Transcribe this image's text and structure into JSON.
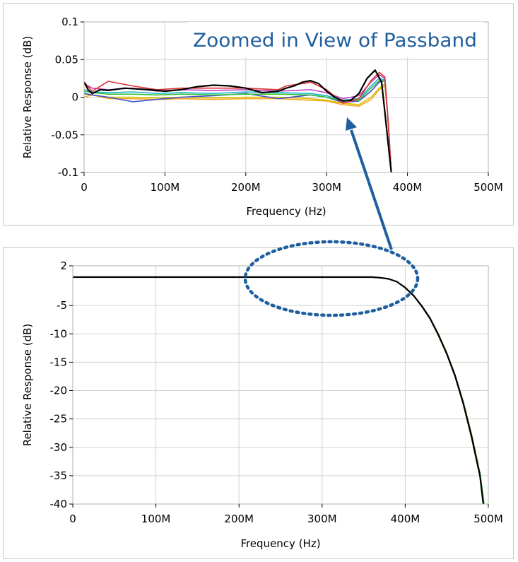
{
  "chart_data": [
    {
      "type": "line",
      "title": "",
      "annotation": "Zoomed in View of Passband",
      "xlabel": "Frequency (Hz)",
      "ylabel": "Relative Response (dB)",
      "xlim": [
        0,
        500000000
      ],
      "ylim": [
        -0.1,
        0.1
      ],
      "xticks": [
        0,
        100000000,
        200000000,
        300000000,
        400000000,
        500000000
      ],
      "xtick_labels": [
        "0",
        "100M",
        "200M",
        "300M",
        "400M",
        "500M"
      ],
      "yticks": [
        0.1,
        0.05,
        0,
        -0.05,
        -0.1
      ],
      "ytick_labels": [
        "0.1",
        "0.05",
        "0",
        "-0.05",
        "-0.1"
      ],
      "grid": true,
      "series": [
        {
          "name": "orange",
          "color": "#f5a623",
          "x": [
            0,
            10,
            30,
            60,
            90,
            120,
            160,
            200,
            240,
            280,
            300,
            320,
            340,
            355,
            365,
            372,
            376,
            380
          ],
          "y": [
            0.0,
            0.003,
            -0.002,
            -0.002,
            -0.003,
            -0.002,
            -0.003,
            -0.002,
            -0.002,
            -0.004,
            -0.005,
            -0.01,
            -0.012,
            -0.003,
            0.01,
            0.015,
            -0.03,
            -0.1
          ]
        },
        {
          "name": "yellow",
          "color": "#d8c000",
          "x": [
            0,
            10,
            30,
            60,
            90,
            120,
            160,
            200,
            240,
            280,
            300,
            320,
            340,
            355,
            365,
            372,
            376,
            380
          ],
          "y": [
            0.004,
            0.003,
            0.0,
            0.0,
            -0.001,
            0.0,
            -0.001,
            0.0,
            0.0,
            -0.002,
            -0.004,
            -0.008,
            -0.01,
            0.0,
            0.012,
            0.018,
            -0.03,
            -0.1
          ]
        },
        {
          "name": "blue",
          "color": "#4050d0",
          "x": [
            0,
            10,
            30,
            60,
            90,
            120,
            160,
            200,
            240,
            280,
            300,
            320,
            340,
            355,
            365,
            372,
            376,
            380
          ],
          "y": [
            0.005,
            0.003,
            0.0,
            -0.006,
            -0.003,
            0.0,
            0.002,
            0.005,
            -0.002,
            0.003,
            0.0,
            -0.007,
            -0.005,
            0.008,
            0.02,
            0.022,
            -0.03,
            -0.1
          ]
        },
        {
          "name": "green",
          "color": "#3cc03c",
          "x": [
            0,
            10,
            30,
            60,
            90,
            120,
            160,
            200,
            240,
            280,
            300,
            320,
            340,
            355,
            365,
            372,
            376,
            380
          ],
          "y": [
            0.008,
            0.006,
            0.004,
            0.004,
            0.003,
            0.004,
            0.003,
            0.004,
            0.004,
            0.003,
            0.0,
            -0.005,
            -0.004,
            0.012,
            0.022,
            0.022,
            -0.03,
            -0.1
          ]
        },
        {
          "name": "cyan",
          "color": "#20b8d0",
          "x": [
            0,
            10,
            30,
            60,
            90,
            120,
            160,
            200,
            240,
            280,
            300,
            320,
            340,
            355,
            365,
            372,
            376,
            380
          ],
          "y": [
            0.01,
            0.007,
            0.006,
            0.007,
            0.005,
            0.006,
            0.005,
            0.007,
            0.006,
            0.005,
            0.002,
            -0.004,
            -0.002,
            0.015,
            0.025,
            0.023,
            -0.03,
            -0.1
          ]
        },
        {
          "name": "magenta",
          "color": "#c040c0",
          "x": [
            0,
            10,
            30,
            60,
            90,
            120,
            160,
            200,
            240,
            280,
            300,
            320,
            340,
            355,
            365,
            372,
            376,
            380
          ],
          "y": [
            0.018,
            0.012,
            0.01,
            0.012,
            0.008,
            0.01,
            0.009,
            0.01,
            0.008,
            0.01,
            0.006,
            -0.002,
            0.002,
            0.02,
            0.03,
            0.025,
            -0.03,
            -0.1
          ]
        },
        {
          "name": "red",
          "color": "#e03030",
          "x": [
            0,
            10,
            30,
            60,
            90,
            120,
            160,
            200,
            240,
            250,
            270,
            280,
            300,
            320,
            340,
            355,
            365,
            372,
            376,
            380
          ],
          "y": [
            0.02,
            0.008,
            0.021,
            0.015,
            0.01,
            0.012,
            0.012,
            0.012,
            0.01,
            0.015,
            0.018,
            0.02,
            0.01,
            -0.008,
            -0.002,
            0.022,
            0.033,
            0.027,
            -0.03,
            -0.1
          ]
        },
        {
          "name": "black",
          "color": "#000000",
          "x": [
            0,
            5,
            10,
            20,
            30,
            50,
            80,
            100,
            120,
            140,
            160,
            180,
            200,
            220,
            240,
            250,
            260,
            270,
            280,
            290,
            300,
            310,
            320,
            330,
            340,
            350,
            360,
            368,
            372,
            376,
            378,
            380
          ],
          "y": [
            0.02,
            0.01,
            0.005,
            0.01,
            0.009,
            0.012,
            0.01,
            0.008,
            0.01,
            0.014,
            0.016,
            0.015,
            0.012,
            0.006,
            0.008,
            0.012,
            0.015,
            0.02,
            0.022,
            0.018,
            0.008,
            0.0,
            -0.005,
            -0.004,
            0.005,
            0.025,
            0.036,
            0.02,
            -0.02,
            -0.06,
            -0.08,
            -0.1
          ]
        }
      ]
    },
    {
      "type": "line",
      "title": "",
      "xlabel": "Frequency (Hz)",
      "ylabel": "Relative Response (dB)",
      "xlim": [
        0,
        500000000
      ],
      "ylim": [
        -40,
        2
      ],
      "xticks": [
        0,
        100000000,
        200000000,
        300000000,
        400000000,
        500000000
      ],
      "xtick_labels": [
        "0",
        "100M",
        "200M",
        "300M",
        "400M",
        "500M"
      ],
      "yticks": [
        2,
        -5,
        -10,
        -15,
        -20,
        -25,
        -30,
        -35,
        -40
      ],
      "ytick_labels": [
        "2",
        "-5",
        "-10",
        "-15",
        "-20",
        "-25",
        "-30",
        "-35",
        "-40"
      ],
      "grid": true,
      "series": [
        {
          "name": "green",
          "color": "#3cc03c",
          "x": [
            0,
            360,
            370,
            380,
            390,
            400,
            410,
            420,
            430,
            440,
            450,
            460,
            470,
            480,
            490,
            495
          ],
          "y": [
            0,
            0,
            -0.1,
            -0.3,
            -0.8,
            -1.8,
            -3.2,
            -5,
            -7.2,
            -10,
            -13.3,
            -17.2,
            -22,
            -27.8,
            -34.5,
            -40
          ]
        },
        {
          "name": "red",
          "color": "#e03030",
          "x": [
            0,
            360,
            370,
            380,
            390,
            400,
            410,
            420,
            430,
            440,
            450,
            460,
            470,
            480,
            490,
            494
          ],
          "y": [
            0,
            0,
            -0.1,
            -0.3,
            -0.8,
            -1.9,
            -3.3,
            -5.2,
            -7.4,
            -10.3,
            -13.6,
            -17.6,
            -22.5,
            -28.5,
            -35.2,
            -40
          ]
        },
        {
          "name": "black",
          "color": "#000000",
          "x": [
            0,
            360,
            370,
            380,
            390,
            400,
            410,
            420,
            430,
            440,
            450,
            460,
            470,
            480,
            490,
            494
          ],
          "y": [
            0,
            0,
            -0.1,
            -0.3,
            -0.8,
            -1.85,
            -3.25,
            -5.1,
            -7.3,
            -10.2,
            -13.5,
            -17.4,
            -22.3,
            -28.2,
            -35,
            -40
          ]
        }
      ]
    }
  ]
}
